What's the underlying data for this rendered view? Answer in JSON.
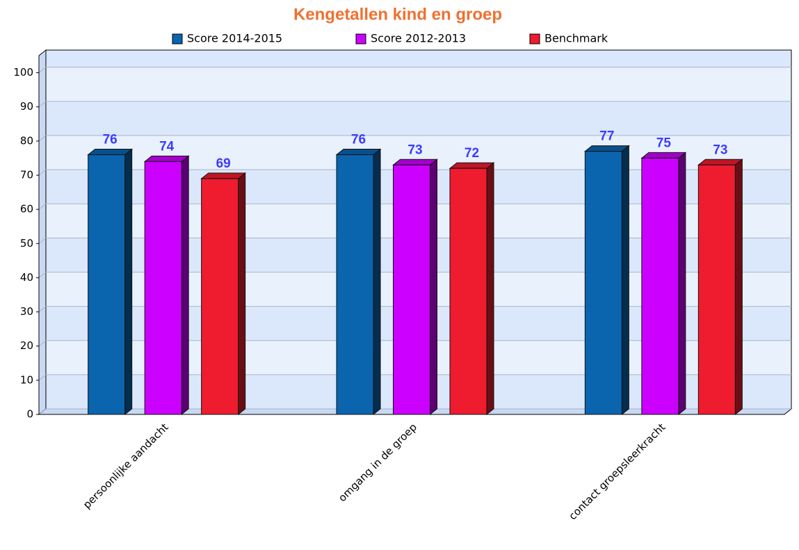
{
  "chart_data": {
    "type": "bar",
    "title": "Kengetallen kind en groep",
    "categories": [
      "persoonlijke aandacht",
      "omgang in de groep",
      "contact groepsleerkracht"
    ],
    "series": [
      {
        "name": "Score 2014-2015",
        "color": "#0a64ae",
        "values": [
          76,
          76,
          77
        ]
      },
      {
        "name": "Score 2012-2013",
        "color": "#cc00ff",
        "values": [
          74,
          73,
          75
        ]
      },
      {
        "name": "Benchmark",
        "color": "#ee1c2e",
        "values": [
          69,
          72,
          73
        ]
      }
    ],
    "ylim": [
      0,
      105
    ],
    "yticks": [
      0,
      10,
      20,
      30,
      40,
      50,
      60,
      70,
      80,
      90,
      100
    ],
    "grid": true,
    "legend": "top"
  }
}
